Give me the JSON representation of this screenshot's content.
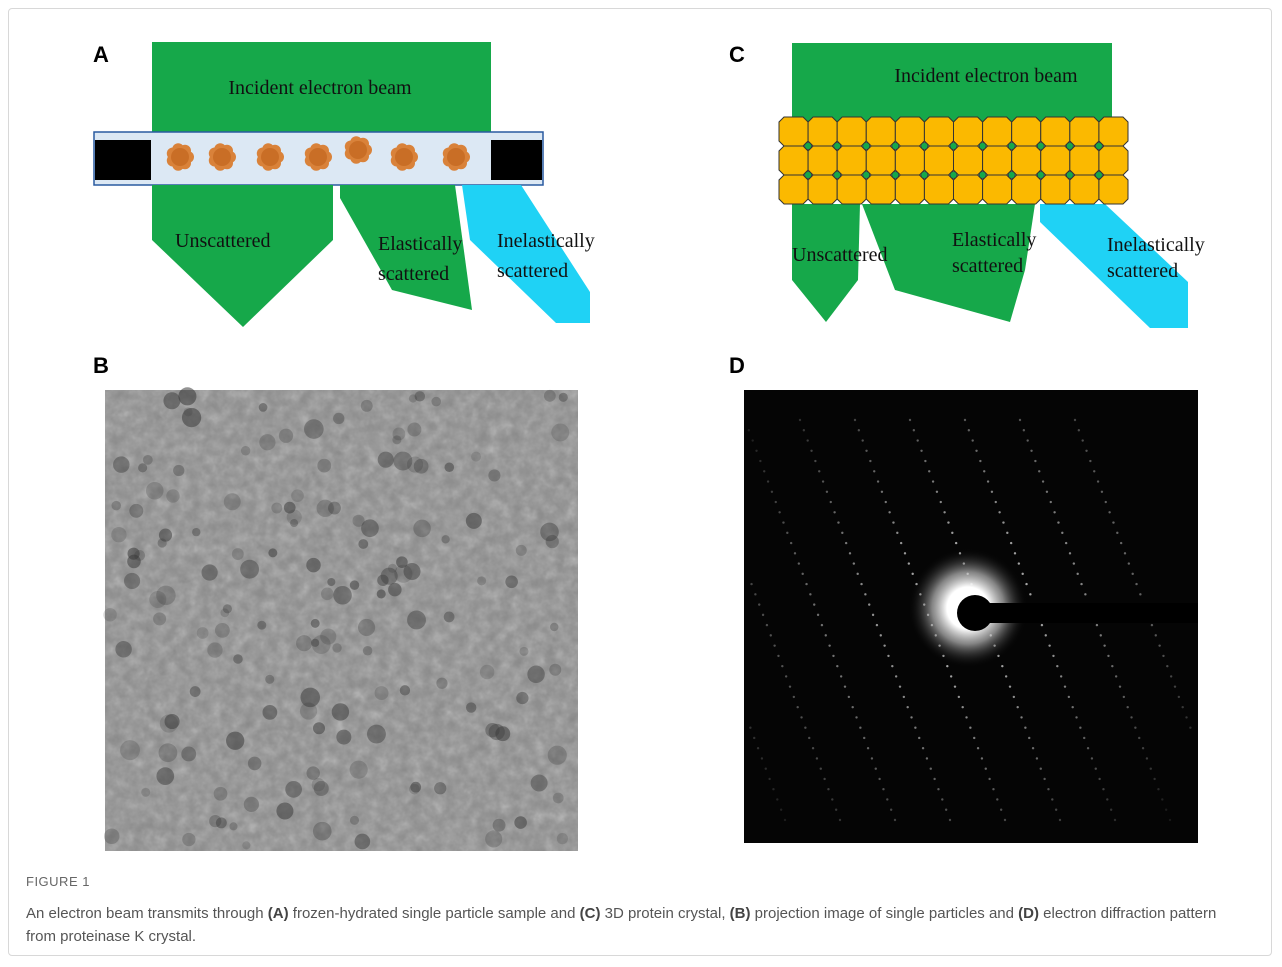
{
  "panels": [
    {
      "label": "A",
      "beam": "Incident electron beam",
      "unscattered": "Unscattered",
      "elastic": [
        "Elastically",
        "scattered"
      ],
      "inelastic": [
        "Inelastically",
        "scattered"
      ]
    },
    {
      "label": "B"
    },
    {
      "label": "C",
      "beam": "Incident electron beam",
      "unscattered": "Unscattered",
      "elastic": [
        "Elastically",
        "scattered"
      ],
      "inelastic": [
        "Inelastically",
        "scattered"
      ]
    },
    {
      "label": "D"
    }
  ],
  "caption": {
    "title": "FIGURE 1",
    "segments": [
      "An electron beam transmits through ",
      "(A)",
      " frozen-hydrated single particle sample and ",
      "(C)",
      " 3D protein crystal, ",
      "(B)",
      " projection image of single particles and ",
      "(D)",
      " electron diffraction pattern from proteinase K crystal."
    ]
  }
}
